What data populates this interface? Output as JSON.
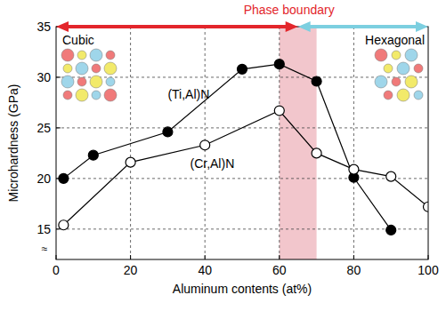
{
  "chart_data": {
    "type": "line",
    "xlabel": "Aluminum contents (at%)",
    "ylabel": "Microhardness (GPa)",
    "xlim": [
      0,
      100
    ],
    "ylim": [
      12,
      35
    ],
    "xticks": [
      0,
      20,
      40,
      60,
      80,
      100
    ],
    "yticks": [
      15,
      20,
      25,
      30,
      35
    ],
    "grid": true,
    "axis_break": "≈",
    "phase_boundary": {
      "label": "Phase boundary",
      "x": [
        60,
        70
      ],
      "color": "#e3262b"
    },
    "regions": [
      {
        "label": "Cubic",
        "x": [
          0,
          65
        ],
        "color": "#e3262b"
      },
      {
        "label": "Hexagonal",
        "x": [
          65,
          100
        ],
        "color": "#7ccfe0"
      }
    ],
    "series": [
      {
        "name": "(Ti,Al)N",
        "color": "#000000",
        "marker": "circle",
        "line_style": "solid",
        "x": [
          2,
          10,
          30,
          50,
          60,
          70,
          80,
          90
        ],
        "values": [
          20.0,
          22.3,
          24.6,
          30.8,
          31.3,
          29.6,
          20.1,
          14.9
        ]
      },
      {
        "name": "(Cr,Al)N",
        "color": "#000000",
        "marker": "open_circle",
        "line_style": "solid",
        "x": [
          2,
          20,
          40,
          60,
          70,
          80,
          90,
          100
        ],
        "values": [
          15.4,
          21.6,
          23.3,
          26.7,
          22.5,
          20.9,
          20.2,
          17.2
        ]
      }
    ]
  }
}
